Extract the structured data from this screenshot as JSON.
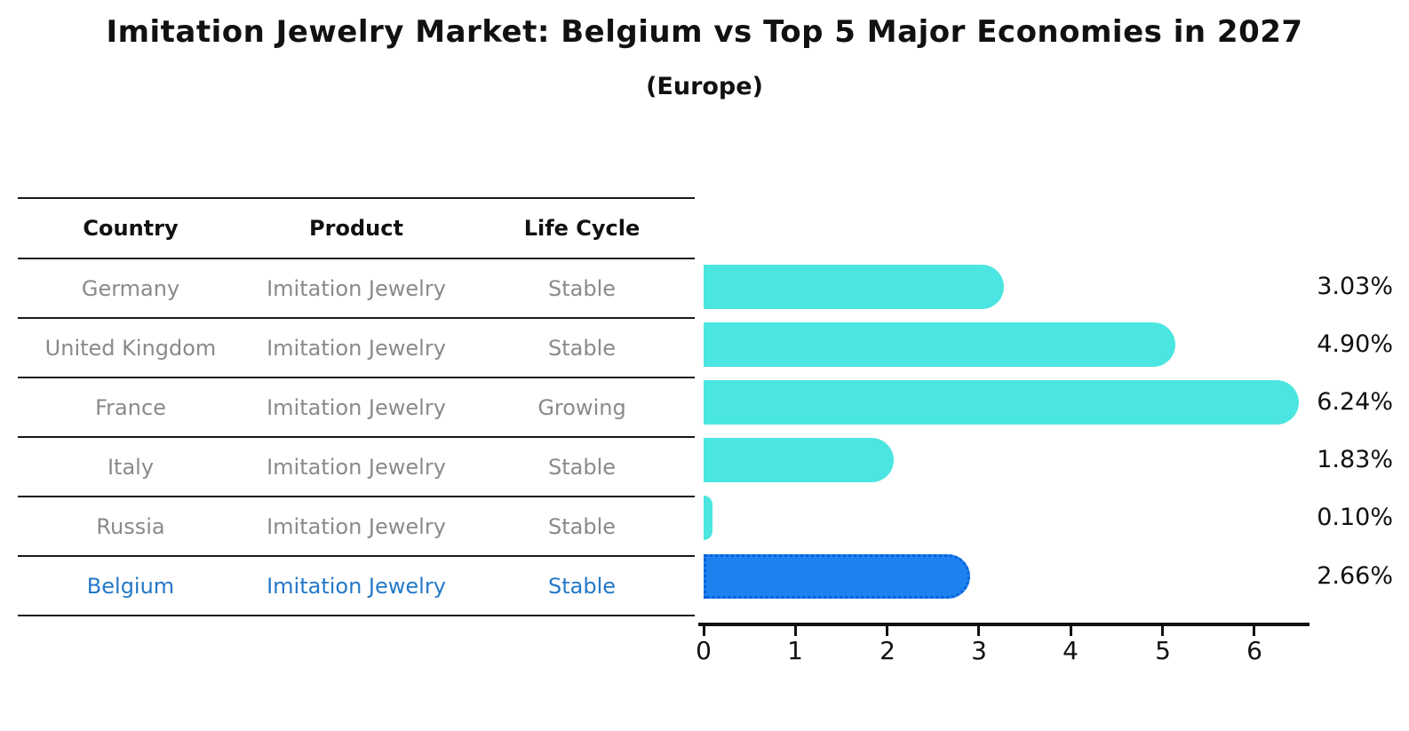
{
  "title": "Imitation Jewelry Market: Belgium vs Top 5 Major Economies in 2027",
  "subtitle": "(Europe)",
  "table": {
    "headers": [
      "Country",
      "Product",
      "Life Cycle"
    ],
    "rows": [
      {
        "country": "Germany",
        "product": "Imitation Jewelry",
        "life_cycle": "Stable",
        "highlight": false
      },
      {
        "country": "United Kingdom",
        "product": "Imitation Jewelry",
        "life_cycle": "Stable",
        "highlight": false
      },
      {
        "country": "France",
        "product": "Imitation Jewelry",
        "life_cycle": "Growing",
        "highlight": false
      },
      {
        "country": "Italy",
        "product": "Imitation Jewelry",
        "life_cycle": "Stable",
        "highlight": false
      },
      {
        "country": "Russia",
        "product": "Imitation Jewelry",
        "life_cycle": "Stable",
        "highlight": false
      },
      {
        "country": "Belgium",
        "product": "Imitation Jewelry",
        "life_cycle": "Stable",
        "highlight": true
      }
    ]
  },
  "chart_data": {
    "type": "bar",
    "orientation": "horizontal",
    "title": "Imitation Jewelry Market: Belgium vs Top 5 Major Economies in 2027 (Europe)",
    "categories": [
      "Germany",
      "United Kingdom",
      "France",
      "Italy",
      "Russia",
      "Belgium"
    ],
    "values": [
      3.03,
      4.9,
      6.24,
      1.83,
      0.1,
      2.66
    ],
    "value_labels": [
      "3.03%",
      "4.90%",
      "6.24%",
      "1.83%",
      "0.10%",
      "2.66%"
    ],
    "xlabel": "",
    "ylabel": "",
    "xticks": [
      "0",
      "1",
      "2",
      "3",
      "4",
      "5",
      "6"
    ],
    "xlim": [
      0,
      6.6
    ],
    "grid": false,
    "legend_position": "none",
    "bar_color": "#4BE6E1",
    "highlight_bar_color": "#1B82F0",
    "highlight_border_color": "#0E5FD8",
    "highlight_index": 5
  },
  "colors": {
    "line": "#1a1a1a",
    "axis": "#111111",
    "row_text": "#8a8a8a",
    "header_text": "#111111",
    "highlight_text": "#2478C8"
  }
}
